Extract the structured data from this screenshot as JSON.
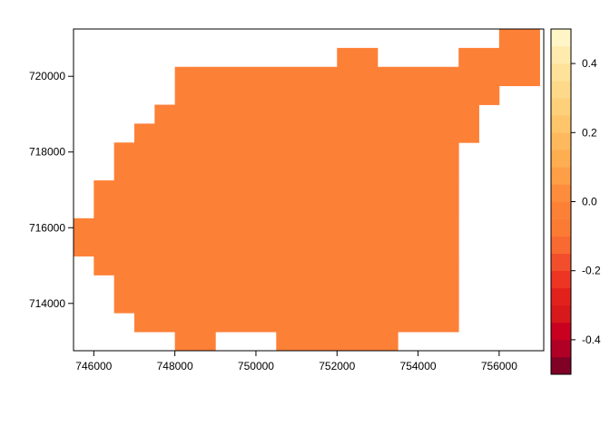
{
  "chart_data": {
    "type": "heatmap",
    "title": "",
    "xlabel": "",
    "ylabel": "",
    "xlim": [
      745500,
      757100
    ],
    "ylim": [
      712750,
      721250
    ],
    "xticks": [
      746000,
      748000,
      750000,
      752000,
      754000,
      756000
    ],
    "xtick_labels": [
      "746000",
      "748000",
      "750000",
      "752000",
      "754000",
      "756000"
    ],
    "yticks": [
      714000,
      716000,
      718000,
      720000
    ],
    "ytick_labels": [
      "714000",
      "716000",
      "718000",
      "720000"
    ],
    "cell_value": 0.0,
    "cell_color": "#FD8037",
    "grid": false,
    "spans": [
      {
        "y": [
          721000,
          721250
        ],
        "x": [
          [
            756000,
            757000
          ]
        ]
      },
      {
        "y": [
          720750,
          721000
        ],
        "x": [
          [
            756000,
            757000
          ]
        ]
      },
      {
        "y": [
          720250,
          720750
        ],
        "x": [
          [
            752000,
            753000
          ],
          [
            755000,
            757000
          ]
        ]
      },
      {
        "y": [
          720000,
          720250
        ],
        "x": [
          [
            748000,
            757000
          ]
        ]
      },
      {
        "y": [
          719750,
          720000
        ],
        "x": [
          [
            748000,
            757000
          ]
        ]
      },
      {
        "y": [
          719250,
          719750
        ],
        "x": [
          [
            748000,
            756000
          ]
        ]
      },
      {
        "y": [
          718750,
          719250
        ],
        "x": [
          [
            747500,
            755500
          ]
        ]
      },
      {
        "y": [
          718250,
          718750
        ],
        "x": [
          [
            747000,
            755500
          ]
        ]
      },
      {
        "y": [
          717250,
          718250
        ],
        "x": [
          [
            746500,
            755000
          ]
        ]
      },
      {
        "y": [
          716250,
          717250
        ],
        "x": [
          [
            746000,
            755000
          ]
        ]
      },
      {
        "y": [
          715250,
          716250
        ],
        "x": [
          [
            745500,
            755000
          ]
        ]
      },
      {
        "y": [
          714750,
          715250
        ],
        "x": [
          [
            746000,
            755000
          ]
        ]
      },
      {
        "y": [
          713750,
          714750
        ],
        "x": [
          [
            746500,
            755000
          ]
        ]
      },
      {
        "y": [
          713250,
          713750
        ],
        "x": [
          [
            747000,
            755000
          ]
        ]
      },
      {
        "y": [
          712750,
          713250
        ],
        "x": [
          [
            748000,
            749000
          ],
          [
            750500,
            753500
          ]
        ]
      }
    ]
  },
  "legend": {
    "placement": "right",
    "range": [
      -0.5,
      0.5
    ],
    "breaks": [
      -0.5,
      -0.45,
      -0.4,
      -0.35,
      -0.3,
      -0.25,
      -0.2,
      -0.15,
      -0.1,
      -0.05,
      0.0,
      0.05,
      0.1,
      0.15,
      0.2,
      0.25,
      0.3,
      0.35,
      0.4,
      0.45,
      0.5
    ],
    "colors": [
      "#800026",
      "#B10026",
      "#CA0020",
      "#D7191C",
      "#E3211C",
      "#EE3524",
      "#F24E2B",
      "#F86A31",
      "#FC7B34",
      "#FD8037",
      "#FD8D3C",
      "#FE9E47",
      "#FEAD51",
      "#FEB95E",
      "#FEC56B",
      "#FED07A",
      "#FED98A",
      "#FFE29A",
      "#FFEBAD",
      "#FFF5C6"
    ],
    "ticks": [
      -0.4,
      -0.2,
      0.0,
      0.2,
      0.4
    ],
    "tick_labels": [
      "-0.4",
      "-0.2",
      "0.0",
      "0.2",
      "0.4"
    ]
  }
}
